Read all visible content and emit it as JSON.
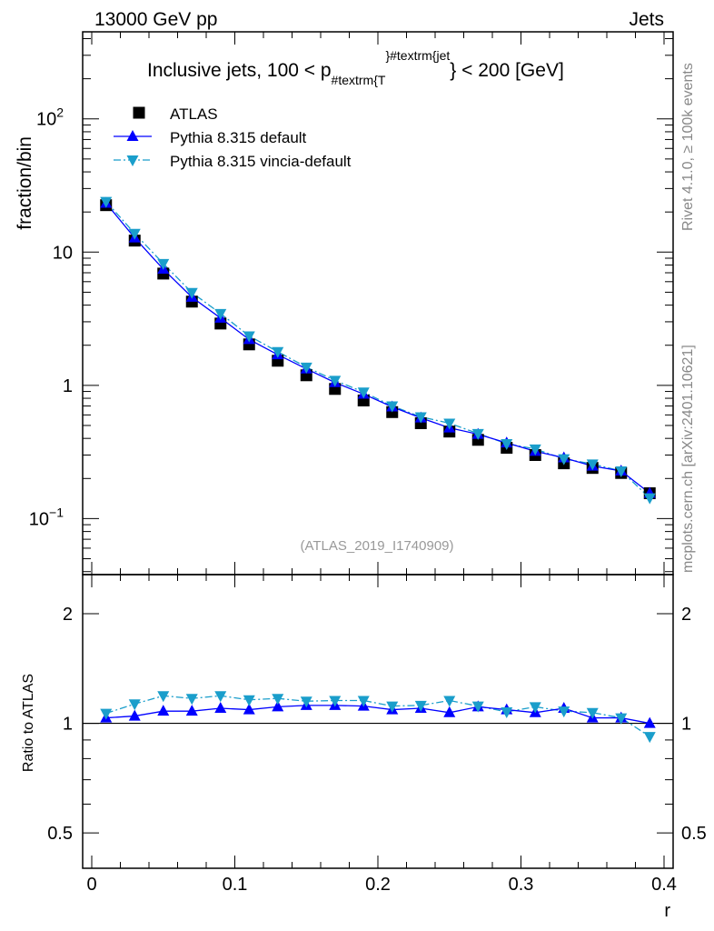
{
  "header": {
    "left": "13000 GeV pp",
    "right": "Jets"
  },
  "side_texts": {
    "rivet": "Rivet 4.1.0, ≥ 100k events",
    "mcplots": "mcplots.cern.ch [arXiv:2401.10621]"
  },
  "colors": {
    "atlas": "#000000",
    "default": "#0000ff",
    "vincia": "#1a9ecb"
  },
  "chart_data": [
    {
      "type": "scatter",
      "title_main": "Inclusive jets, 100 < p",
      "title_sub": "#textrm{T",
      "title_sup": "}#textrm{jet",
      "title_tail": "} < 200 [GeV]",
      "ylabel": "fraction/bin",
      "yscale": "log",
      "ylim": [
        0.038,
        450
      ],
      "xlim": [
        -0.0064,
        0.4064
      ],
      "yticks": [
        {
          "v": 0.1,
          "base": "10",
          "exp": "−1"
        },
        {
          "v": 1,
          "base": "1",
          "exp": ""
        },
        {
          "v": 10,
          "base": "10",
          "exp": ""
        },
        {
          "v": 100,
          "base": "10",
          "exp": "2"
        }
      ],
      "annotation": "(ATLAS_2019_I1740909)",
      "legend_position": "top-left",
      "x": [
        0.01,
        0.03,
        0.05,
        0.07,
        0.09,
        0.11,
        0.13,
        0.15,
        0.17,
        0.19,
        0.21,
        0.23,
        0.25,
        0.27,
        0.29,
        0.31,
        0.33,
        0.35,
        0.37,
        0.39
      ],
      "series": [
        {
          "name": "ATLAS",
          "values": [
            22.5,
            12.2,
            6.9,
            4.25,
            2.91,
            2.03,
            1.53,
            1.19,
            0.94,
            0.77,
            0.63,
            0.52,
            0.45,
            0.39,
            0.34,
            0.3,
            0.26,
            0.24,
            0.22,
            0.155
          ]
        },
        {
          "name": "Pythia 8.315 default",
          "values": [
            23.3,
            12.8,
            7.45,
            4.59,
            3.2,
            2.21,
            1.7,
            1.33,
            1.05,
            0.86,
            0.69,
            0.57,
            0.48,
            0.43,
            0.37,
            0.32,
            0.286,
            0.248,
            0.228,
            0.155
          ]
        },
        {
          "name": "Pythia 8.315 vincia-default",
          "values": [
            24.0,
            13.8,
            8.2,
            4.97,
            3.46,
            2.35,
            1.79,
            1.37,
            1.09,
            0.89,
            0.7,
            0.58,
            0.52,
            0.435,
            0.365,
            0.333,
            0.281,
            0.257,
            0.228,
            0.143
          ]
        }
      ]
    },
    {
      "type": "line",
      "ylabel": "Ratio to ATLAS",
      "xlabel": "r",
      "yscale": "log",
      "ylim": [
        0.4,
        2.56
      ],
      "yticks": [
        "0.5",
        "1",
        "2"
      ],
      "xticks": [
        "0",
        "0.1",
        "0.2",
        "0.3",
        "0.4"
      ],
      "x": [
        0.01,
        0.03,
        0.05,
        0.07,
        0.09,
        0.11,
        0.13,
        0.15,
        0.17,
        0.19,
        0.21,
        0.23,
        0.25,
        0.27,
        0.29,
        0.31,
        0.33,
        0.35,
        0.37,
        0.39
      ],
      "series": [
        {
          "name": "Pythia 8.315 default",
          "values": [
            1.035,
            1.047,
            1.08,
            1.08,
            1.1,
            1.09,
            1.11,
            1.12,
            1.12,
            1.115,
            1.09,
            1.1,
            1.07,
            1.11,
            1.09,
            1.07,
            1.1,
            1.035,
            1.035,
            1.0
          ]
        },
        {
          "name": "Pythia 8.315 vincia-default",
          "values": [
            1.065,
            1.13,
            1.19,
            1.17,
            1.19,
            1.16,
            1.17,
            1.15,
            1.155,
            1.155,
            1.115,
            1.12,
            1.155,
            1.115,
            1.075,
            1.11,
            1.08,
            1.07,
            1.035,
            0.92
          ]
        }
      ]
    }
  ]
}
